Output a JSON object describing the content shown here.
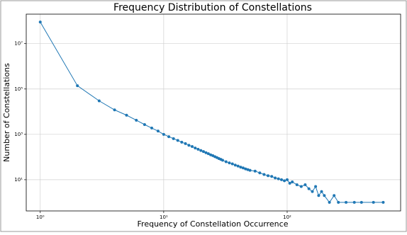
{
  "chart_data": {
    "type": "line",
    "title": "Frequency Distribution of Constellations",
    "x_label": "Frequency of Constellation Occurrence",
    "y_label": "Number of Constellations",
    "x_scale": "log",
    "y_scale": "log",
    "grid": true,
    "xlim": [
      0.77,
      830
    ],
    "ylim": [
      0.42,
      200000000
    ],
    "xticks": [
      {
        "value": 1,
        "label": "10⁰"
      },
      {
        "value": 10,
        "label": "10¹"
      },
      {
        "value": 100,
        "label": "10²"
      }
    ],
    "yticks": [
      {
        "value": 10,
        "label": "10¹"
      },
      {
        "value": 1000,
        "label": "10³"
      },
      {
        "value": 100000,
        "label": "10⁵"
      },
      {
        "value": 10000000,
        "label": "10⁷"
      }
    ],
    "x": [
      1,
      2,
      3,
      4,
      5,
      6,
      7,
      8,
      9,
      10,
      11,
      12,
      13,
      14,
      15,
      16,
      17,
      18,
      19,
      20,
      21,
      22,
      23,
      24,
      25,
      26,
      27,
      28,
      29,
      30,
      32,
      34,
      36,
      38,
      40,
      42,
      44,
      46,
      48,
      50,
      55,
      60,
      65,
      70,
      75,
      80,
      85,
      90,
      95,
      100,
      105,
      110,
      120,
      130,
      140,
      150,
      160,
      170,
      180,
      190,
      200,
      220,
      240,
      260,
      300,
      350,
      400,
      500,
      600
    ],
    "series": [
      {
        "name": "Constellations",
        "color": "#1f77b4",
        "values": [
          90000000,
          140000,
          30000,
          12000,
          7000,
          4200,
          2700,
          1900,
          1400,
          1000,
          790,
          650,
          540,
          450,
          390,
          330,
          290,
          250,
          220,
          195,
          175,
          155,
          140,
          125,
          115,
          104,
          95,
          86,
          79,
          72,
          62,
          55,
          50,
          44,
          40,
          36,
          33,
          30,
          28,
          26,
          24,
          20,
          17,
          15,
          14,
          12,
          11,
          10,
          9,
          10,
          7,
          8,
          6,
          5,
          6,
          4,
          3,
          5,
          2,
          3,
          2,
          1,
          2,
          1,
          1,
          1,
          1,
          1,
          1
        ]
      }
    ]
  }
}
